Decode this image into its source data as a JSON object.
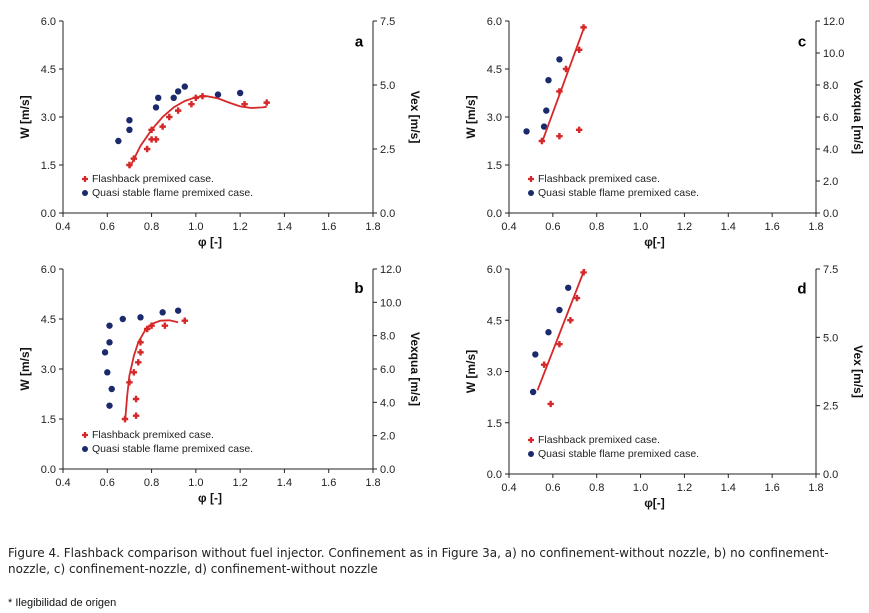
{
  "caption": "Figure 4. Flashback comparison without fuel injector. Confinement as in Figure 3a, a) no confinement-without nozzle, b) no confinement-nozzle, c) confinement-nozzle, d) confinement-without nozzle",
  "footnote": "* Ilegibilidad de origen",
  "colors": {
    "flashback": "#d62828",
    "stable": "#1a2a6c",
    "axis": "#222222"
  },
  "chart_data": [
    {
      "id": "a",
      "type": "scatter",
      "panel_label": "a",
      "xlabel": "φ [-]",
      "ylabel": "W [m/s]",
      "y2label": "Vex [m/s]",
      "xlim": [
        0.4,
        1.8
      ],
      "ylim": [
        0.0,
        6.0
      ],
      "y2lim": [
        0.0,
        7.5
      ],
      "xticks": [
        "0.4",
        "0.6",
        "0.8",
        "1.0",
        "1.2",
        "1.4",
        "1.6",
        "1.8"
      ],
      "yticks": [
        "0.0",
        "1.5",
        "3.0",
        "4.5",
        "6.0"
      ],
      "y2ticks": [
        "0.0",
        "2.5",
        "5.0",
        "7.5"
      ],
      "legend": [
        "Flashback premixed case.",
        "Quasi stable  flame premixed case."
      ],
      "series": [
        {
          "name": "Flashback premixed case.",
          "marker": "star",
          "points": [
            [
              0.7,
              1.5
            ],
            [
              0.72,
              1.7
            ],
            [
              0.78,
              2.0
            ],
            [
              0.8,
              2.3
            ],
            [
              0.82,
              2.3
            ],
            [
              0.8,
              2.6
            ],
            [
              0.85,
              2.7
            ],
            [
              0.88,
              3.0
            ],
            [
              0.92,
              3.2
            ],
            [
              0.98,
              3.4
            ],
            [
              1.0,
              3.6
            ],
            [
              1.03,
              3.65
            ],
            [
              1.22,
              3.4
            ],
            [
              1.32,
              3.45
            ]
          ]
        },
        {
          "name": "Quasi stable  flame premixed case.",
          "marker": "circle",
          "points": [
            [
              0.65,
              2.25
            ],
            [
              0.7,
              2.6
            ],
            [
              0.7,
              2.9
            ],
            [
              0.82,
              3.3
            ],
            [
              0.83,
              3.6
            ],
            [
              0.9,
              3.6
            ],
            [
              0.92,
              3.8
            ],
            [
              0.95,
              3.95
            ],
            [
              1.1,
              3.7
            ],
            [
              1.2,
              3.75
            ]
          ]
        },
        {
          "name": "Flashback trend",
          "marker": "line",
          "points": [
            [
              0.7,
              1.4
            ],
            [
              0.75,
              2.1
            ],
            [
              0.8,
              2.6
            ],
            [
              0.85,
              3.0
            ],
            [
              0.9,
              3.3
            ],
            [
              0.95,
              3.5
            ],
            [
              1.0,
              3.62
            ],
            [
              1.05,
              3.65
            ],
            [
              1.1,
              3.58
            ],
            [
              1.15,
              3.45
            ],
            [
              1.2,
              3.33
            ],
            [
              1.25,
              3.28
            ],
            [
              1.3,
              3.3
            ],
            [
              1.32,
              3.32
            ]
          ]
        }
      ]
    },
    {
      "id": "b",
      "type": "scatter",
      "panel_label": "b",
      "xlabel": "φ [-]",
      "ylabel": "W [m/s]",
      "y2label": "Vexqua [m/s]",
      "xlim": [
        0.4,
        1.8
      ],
      "ylim": [
        0.0,
        6.0
      ],
      "y2lim": [
        0.0,
        12.0
      ],
      "xticks": [
        "0.4",
        "0.6",
        "0.8",
        "1.0",
        "1.2",
        "1.4",
        "1.6",
        "1.8"
      ],
      "yticks": [
        "0.0",
        "1.5",
        "3.0",
        "4.5",
        "6.0"
      ],
      "y2ticks": [
        "0.0",
        "2.0",
        "4.0",
        "6.0",
        "8.0",
        "10.0",
        "12.0"
      ],
      "legend": [
        "Flashback premixed case.",
        "Quasi stable  flame premixed case."
      ],
      "series": [
        {
          "name": "Flashback premixed case.",
          "marker": "star",
          "points": [
            [
              0.68,
              1.5
            ],
            [
              0.73,
              1.6
            ],
            [
              0.73,
              2.1
            ],
            [
              0.7,
              2.6
            ],
            [
              0.72,
              2.9
            ],
            [
              0.74,
              3.2
            ],
            [
              0.75,
              3.5
            ],
            [
              0.75,
              3.8
            ],
            [
              0.78,
              4.2
            ],
            [
              0.8,
              4.3
            ],
            [
              0.86,
              4.3
            ],
            [
              0.95,
              4.45
            ]
          ]
        },
        {
          "name": "Quasi stable  flame premixed case.",
          "marker": "circle",
          "points": [
            [
              0.61,
              1.9
            ],
            [
              0.62,
              2.4
            ],
            [
              0.6,
              2.9
            ],
            [
              0.59,
              3.5
            ],
            [
              0.61,
              3.8
            ],
            [
              0.61,
              4.3
            ],
            [
              0.67,
              4.5
            ],
            [
              0.75,
              4.55
            ],
            [
              0.85,
              4.7
            ],
            [
              0.92,
              4.75
            ]
          ]
        },
        {
          "name": "Flashback trend",
          "marker": "line",
          "points": [
            [
              0.68,
              1.4
            ],
            [
              0.69,
              2.2
            ],
            [
              0.7,
              2.8
            ],
            [
              0.72,
              3.4
            ],
            [
              0.74,
              3.8
            ],
            [
              0.77,
              4.15
            ],
            [
              0.8,
              4.35
            ],
            [
              0.84,
              4.45
            ],
            [
              0.88,
              4.46
            ],
            [
              0.92,
              4.4
            ]
          ]
        }
      ]
    },
    {
      "id": "c",
      "type": "scatter",
      "panel_label": "c",
      "xlabel": "φ[-]",
      "ylabel": "W [m/s]",
      "y2label": "Vexqua [m/s]",
      "xlim": [
        0.4,
        1.8
      ],
      "ylim": [
        0.0,
        6.0
      ],
      "y2lim": [
        0.0,
        12.0
      ],
      "xticks": [
        "0.4",
        "0.6",
        "0.8",
        "1.0",
        "1.2",
        "1.4",
        "1.6",
        "1.8"
      ],
      "yticks": [
        "0.0",
        "1.5",
        "3.0",
        "4.5",
        "6.0"
      ],
      "y2ticks": [
        "0.0",
        "2.0",
        "4.0",
        "6.0",
        "8.0",
        "10.0",
        "12.0"
      ],
      "legend": [
        "Flashback premixed case.",
        "Quasi stable  flame premixed case."
      ],
      "series": [
        {
          "name": "Flashback premixed case.",
          "marker": "star",
          "points": [
            [
              0.55,
              2.25
            ],
            [
              0.63,
              2.4
            ],
            [
              0.72,
              2.6
            ],
            [
              0.63,
              3.8
            ],
            [
              0.66,
              4.5
            ],
            [
              0.72,
              5.1
            ],
            [
              0.74,
              5.8
            ]
          ]
        },
        {
          "name": "Quasi stable  flame premixed case.",
          "marker": "circle",
          "points": [
            [
              0.48,
              2.55
            ],
            [
              0.56,
              2.7
            ],
            [
              0.57,
              3.2
            ],
            [
              0.58,
              4.15
            ],
            [
              0.63,
              4.8
            ]
          ]
        },
        {
          "name": "Flashback trend",
          "marker": "line",
          "points": [
            [
              0.55,
              2.2
            ],
            [
              0.745,
              5.85
            ]
          ]
        }
      ]
    },
    {
      "id": "d",
      "type": "scatter",
      "panel_label": "d",
      "xlabel": "φ[-]",
      "ylabel": "W [m/s]",
      "y2label": "Vex [m/s]",
      "xlim": [
        0.4,
        1.8
      ],
      "ylim": [
        0.0,
        6.0
      ],
      "y2lim": [
        0.0,
        7.5
      ],
      "xticks": [
        "0.4",
        "0.6",
        "0.8",
        "1.0",
        "1.2",
        "1.4",
        "1.6",
        "1.8"
      ],
      "yticks": [
        "0.0",
        "1.5",
        "3.0",
        "4.5",
        "6.0"
      ],
      "y2ticks": [
        "0.0",
        "2.5",
        "5.0",
        "7.5"
      ],
      "legend": [
        "Flashback premixed case.",
        "Quasi stable  flame premixed case."
      ],
      "series": [
        {
          "name": "Flashback premixed case.",
          "marker": "star",
          "points": [
            [
              0.59,
              2.05
            ],
            [
              0.56,
              3.2
            ],
            [
              0.63,
              3.8
            ],
            [
              0.68,
              4.5
            ],
            [
              0.71,
              5.15
            ],
            [
              0.74,
              5.9
            ]
          ]
        },
        {
          "name": "Quasi stable  flame premixed case.",
          "marker": "circle",
          "points": [
            [
              0.51,
              2.4
            ],
            [
              0.52,
              3.5
            ],
            [
              0.58,
              4.15
            ],
            [
              0.63,
              4.8
            ],
            [
              0.67,
              5.45
            ]
          ]
        },
        {
          "name": "Flashback trend",
          "marker": "line",
          "points": [
            [
              0.53,
              2.45
            ],
            [
              0.745,
              6.0
            ]
          ]
        }
      ]
    }
  ]
}
